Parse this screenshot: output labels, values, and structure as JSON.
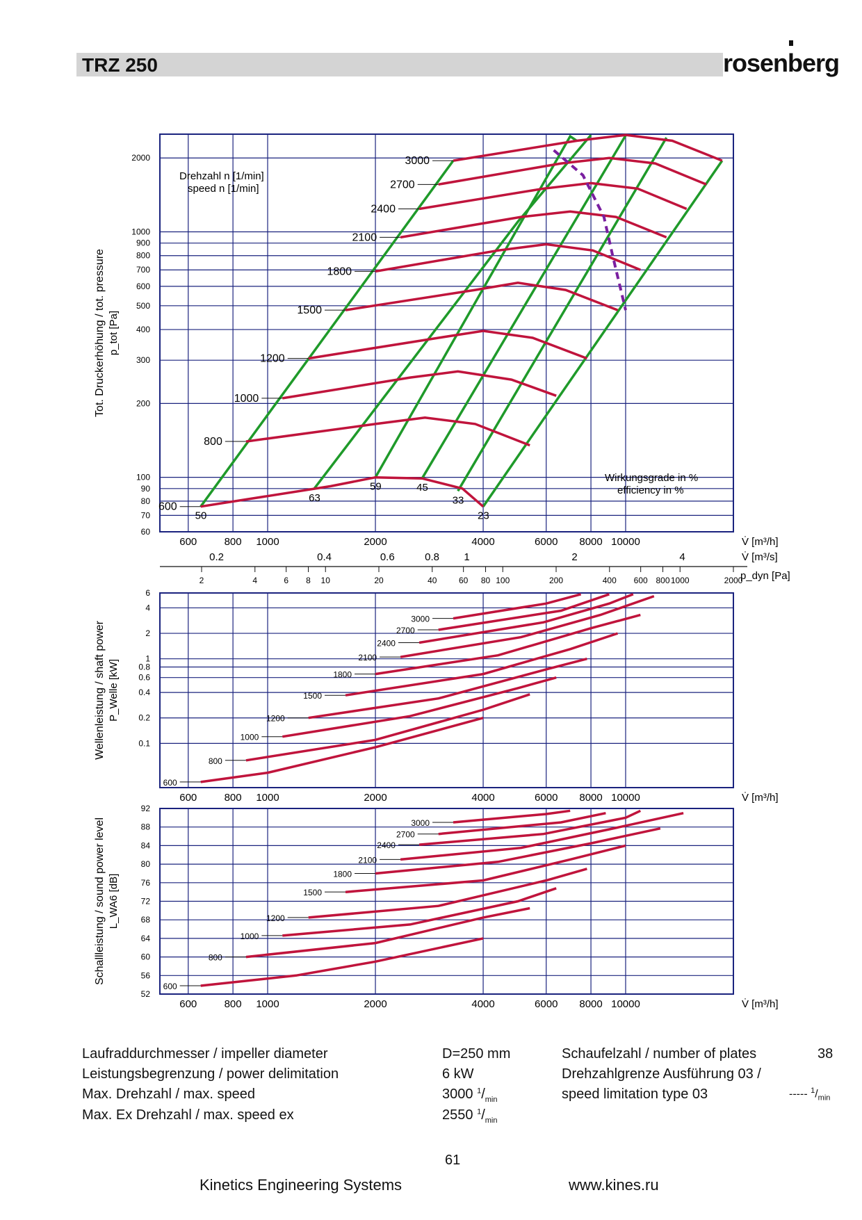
{
  "header": {
    "title": "TRZ 250",
    "logo_text": "rosenberg"
  },
  "colors": {
    "curve": "#c0143c",
    "efficiency": "#1f9a2a",
    "limit": "#7a1fa0",
    "grid": "#1a237e"
  },
  "chart_data": [
    {
      "type": "line",
      "id": "pressure",
      "x_scale": "log",
      "y_scale": "log",
      "xlim": [
        500,
        20000
      ],
      "ylim": [
        60,
        2500
      ],
      "ylabel": "Tot. Druckerhöhung / tot. pressure",
      "ylabel_sub": "p_tot [Pa]",
      "xlabel": "V̇ [m³/h]",
      "xticks": [
        600,
        800,
        1000,
        2000,
        4000,
        6000,
        8000,
        10000
      ],
      "yticks": [
        60,
        70,
        80,
        90,
        100,
        200,
        300,
        400,
        500,
        600,
        700,
        800,
        900,
        1000,
        2000
      ],
      "secondary_axes": [
        {
          "label": "V̇ [m³/s]",
          "ticks": [
            "0.2",
            "0.4",
            "0.6",
            "0.8",
            "1",
            "2",
            "4"
          ]
        },
        {
          "label": "p_dyn [Pa]",
          "ticks": [
            "2",
            "4",
            "6",
            "8",
            "10",
            "20",
            "40",
            "60",
            "80",
            "100",
            "200",
            "400",
            "600",
            "800",
            "1000",
            "2000"
          ]
        }
      ],
      "speed_label_title": "Drehzahl n [1/min]",
      "speed_label_title_en": "speed n [1/min]",
      "efficiency_title": "Wirkungsgrade in %",
      "efficiency_title_en": "efficiency in %",
      "series": [
        {
          "name": "600",
          "points": [
            [
              650,
              76
            ],
            [
              1500,
              92
            ],
            [
              2000,
              100
            ],
            [
              2700,
              99
            ],
            [
              3500,
              90
            ],
            [
              4000,
              76
            ]
          ]
        },
        {
          "name": "800",
          "points": [
            [
              870,
              140
            ],
            [
              2000,
              165
            ],
            [
              2750,
              175
            ],
            [
              3800,
              165
            ],
            [
              5400,
              135
            ]
          ]
        },
        {
          "name": "1000",
          "points": [
            [
              1100,
              210
            ],
            [
              2500,
              255
            ],
            [
              3400,
              270
            ],
            [
              4800,
              250
            ],
            [
              6400,
              215
            ]
          ]
        },
        {
          "name": "1200",
          "points": [
            [
              1300,
              305
            ],
            [
              3000,
              370
            ],
            [
              4000,
              395
            ],
            [
              5500,
              370
            ],
            [
              7800,
              305
            ]
          ]
        },
        {
          "name": "1500",
          "points": [
            [
              1650,
              480
            ],
            [
              3800,
              580
            ],
            [
              5000,
              620
            ],
            [
              6800,
              580
            ],
            [
              9500,
              480
            ]
          ]
        },
        {
          "name": "1800",
          "points": [
            [
              2000,
              690
            ],
            [
              4400,
              840
            ],
            [
              6000,
              890
            ],
            [
              8100,
              840
            ],
            [
              11000,
              700
            ]
          ]
        },
        {
          "name": "2100",
          "points": [
            [
              2350,
              950
            ],
            [
              5100,
              1150
            ],
            [
              7000,
              1210
            ],
            [
              9400,
              1150
            ],
            [
              13000,
              950
            ]
          ]
        },
        {
          "name": "2400",
          "points": [
            [
              2650,
              1240
            ],
            [
              5900,
              1500
            ],
            [
              8000,
              1580
            ],
            [
              10800,
              1500
            ],
            [
              14800,
              1240
            ]
          ]
        },
        {
          "name": "2700",
          "points": [
            [
              3000,
              1560
            ],
            [
              6600,
              1900
            ],
            [
              9000,
              2000
            ],
            [
              12100,
              1900
            ],
            [
              16800,
              1560
            ]
          ]
        },
        {
          "name": "3000",
          "points": [
            [
              3300,
              1950
            ],
            [
              7300,
              2350
            ],
            [
              10000,
              2480
            ],
            [
              13500,
              2350
            ],
            [
              18600,
              1950
            ]
          ]
        }
      ],
      "efficiency_series": [
        {
          "name": "50",
          "points": [
            [
              650,
              76
            ],
            [
              3300,
              1950
            ]
          ]
        },
        {
          "name": "63",
          "points": [
            [
              1350,
              90
            ],
            [
              5000,
              1100
            ],
            [
              8000,
              2480
            ]
          ]
        },
        {
          "name": "59",
          "points": [
            [
              2000,
              100
            ],
            [
              7000,
              2450
            ],
            [
              7300,
              2350
            ]
          ]
        },
        {
          "name": "45",
          "points": [
            [
              2700,
              99
            ],
            [
              10000,
              2470
            ]
          ]
        },
        {
          "name": "33",
          "points": [
            [
              3400,
              88
            ],
            [
              13000,
              2420
            ]
          ]
        },
        {
          "name": "23",
          "points": [
            [
              4000,
              76
            ],
            [
              18600,
              1950
            ]
          ]
        }
      ],
      "efficiency_labels": [
        "50",
        "63",
        "59",
        "45",
        "33",
        "23"
      ],
      "speed_limit_series": {
        "name": "speed limitation type 03",
        "points": [
          [
            6300,
            2150
          ],
          [
            7600,
            1700
          ],
          [
            8700,
            1150
          ],
          [
            9200,
            800
          ],
          [
            10000,
            480
          ]
        ]
      }
    },
    {
      "type": "line",
      "id": "shaft_power",
      "x_scale": "log",
      "y_scale": "log",
      "xlim": [
        500,
        20000
      ],
      "ylim": [
        0.03,
        6
      ],
      "ylabel": "Wellenleistung / shaft power",
      "ylabel_sub": "P_Welle [kW]",
      "xlabel": "V̇ [m³/h]",
      "xticks": [
        600,
        800,
        1000,
        2000,
        4000,
        6000,
        8000,
        10000
      ],
      "yticks": [
        0.1,
        0.2,
        0.4,
        0.6,
        0.8,
        1,
        2,
        4,
        6
      ],
      "series": [
        {
          "name": "600",
          "points": [
            [
              650,
              0.035
            ],
            [
              1000,
              0.045
            ],
            [
              2000,
              0.09
            ],
            [
              4000,
              0.2
            ]
          ]
        },
        {
          "name": "800",
          "points": [
            [
              870,
              0.063
            ],
            [
              2000,
              0.11
            ],
            [
              4000,
              0.25
            ],
            [
              5400,
              0.38
            ]
          ]
        },
        {
          "name": "1000",
          "points": [
            [
              1100,
              0.12
            ],
            [
              2500,
              0.21
            ],
            [
              5000,
              0.45
            ],
            [
              6400,
              0.6
            ]
          ]
        },
        {
          "name": "1200",
          "points": [
            [
              1300,
              0.2
            ],
            [
              3000,
              0.34
            ],
            [
              6000,
              0.75
            ],
            [
              7800,
              1.0
            ]
          ]
        },
        {
          "name": "1500",
          "points": [
            [
              1650,
              0.37
            ],
            [
              4000,
              0.66
            ],
            [
              7000,
              1.3
            ],
            [
              9500,
              2.0
            ]
          ]
        },
        {
          "name": "1800",
          "points": [
            [
              2000,
              0.66
            ],
            [
              4400,
              1.1
            ],
            [
              8000,
              2.3
            ],
            [
              11000,
              3.3
            ]
          ]
        },
        {
          "name": "2100",
          "points": [
            [
              2350,
              1.05
            ],
            [
              5100,
              1.8
            ],
            [
              8500,
              3.3
            ],
            [
              12000,
              5.5
            ]
          ]
        },
        {
          "name": "2400",
          "points": [
            [
              2650,
              1.55
            ],
            [
              5900,
              2.7
            ],
            [
              9000,
              4.5
            ],
            [
              10500,
              5.8
            ]
          ]
        },
        {
          "name": "2700",
          "points": [
            [
              3000,
              2.2
            ],
            [
              6600,
              3.7
            ],
            [
              9000,
              5.8
            ]
          ]
        },
        {
          "name": "3000",
          "points": [
            [
              3300,
              3.0
            ],
            [
              6000,
              4.5
            ],
            [
              7500,
              5.8
            ]
          ]
        }
      ]
    },
    {
      "type": "line",
      "id": "sound_power",
      "x_scale": "log",
      "y_scale": "linear",
      "xlim": [
        500,
        20000
      ],
      "ylim": [
        52,
        92
      ],
      "ylabel": "Schallleistung / sound power level",
      "ylabel_sub": "L_WA6 [dB]",
      "xlabel": "V̇ [m³/h]",
      "xticks": [
        600,
        800,
        1000,
        2000,
        4000,
        6000,
        8000,
        10000
      ],
      "yticks": [
        52,
        56,
        60,
        64,
        68,
        72,
        76,
        80,
        84,
        88,
        92
      ],
      "series": [
        {
          "name": "600",
          "points": [
            [
              650,
              53.8
            ],
            [
              1200,
              56
            ],
            [
              2000,
              59
            ],
            [
              4000,
              64
            ]
          ]
        },
        {
          "name": "800",
          "points": [
            [
              870,
              60
            ],
            [
              2000,
              63
            ],
            [
              4000,
              68.5
            ],
            [
              5400,
              70.5
            ]
          ]
        },
        {
          "name": "1000",
          "points": [
            [
              1100,
              64.6
            ],
            [
              2500,
              67
            ],
            [
              5000,
              72
            ],
            [
              6400,
              74.8
            ]
          ]
        },
        {
          "name": "1200",
          "points": [
            [
              1300,
              68.5
            ],
            [
              3000,
              71
            ],
            [
              6000,
              76.5
            ],
            [
              7800,
              79
            ]
          ]
        },
        {
          "name": "1500",
          "points": [
            [
              1650,
              74
            ],
            [
              4000,
              76.5
            ],
            [
              7000,
              81
            ],
            [
              10000,
              84
            ]
          ]
        },
        {
          "name": "1800",
          "points": [
            [
              2000,
              78
            ],
            [
              4400,
              80.5
            ],
            [
              8000,
              84.5
            ],
            [
              12500,
              87.7
            ]
          ]
        },
        {
          "name": "2100",
          "points": [
            [
              2350,
              81
            ],
            [
              5100,
              83.5
            ],
            [
              9000,
              87.5
            ],
            [
              14500,
              91
            ]
          ]
        },
        {
          "name": "2400",
          "points": [
            [
              2650,
              84.2
            ],
            [
              5900,
              86.5
            ],
            [
              10000,
              90
            ],
            [
              11000,
              91.5
            ]
          ]
        },
        {
          "name": "2700",
          "points": [
            [
              3000,
              86.5
            ],
            [
              6600,
              89
            ],
            [
              8800,
              91
            ]
          ]
        },
        {
          "name": "3000",
          "points": [
            [
              3300,
              89
            ],
            [
              6000,
              90.8
            ],
            [
              7000,
              91.5
            ]
          ]
        }
      ]
    }
  ],
  "specs": {
    "impeller_label": "Laufraddurchmesser / impeller diameter",
    "impeller_value": "D=250 mm",
    "power_label": "Leistungsbegrenzung / power delimitation",
    "power_value": "6 kW",
    "maxspeed_label": "Max. Drehzahl / max. speed",
    "maxspeed_value": "3000",
    "maxspeed_ex_label": "Max. Ex Drehzahl / max. speed ex",
    "maxspeed_ex_value": "2550",
    "speed_unit_num": "1",
    "speed_unit_den": "min",
    "plates_label": "Schaufelzahl / number of plates",
    "plates_value": "38",
    "speedlimit_label_1": "Drehzahlgrenze Ausführung 03 /",
    "speedlimit_label_2": "speed limitation type 03",
    "speedlimit_legend": "-----"
  },
  "page_number": "61",
  "footer": {
    "company": "Kinetics Engineering Systems",
    "url": "www.kines.ru"
  }
}
